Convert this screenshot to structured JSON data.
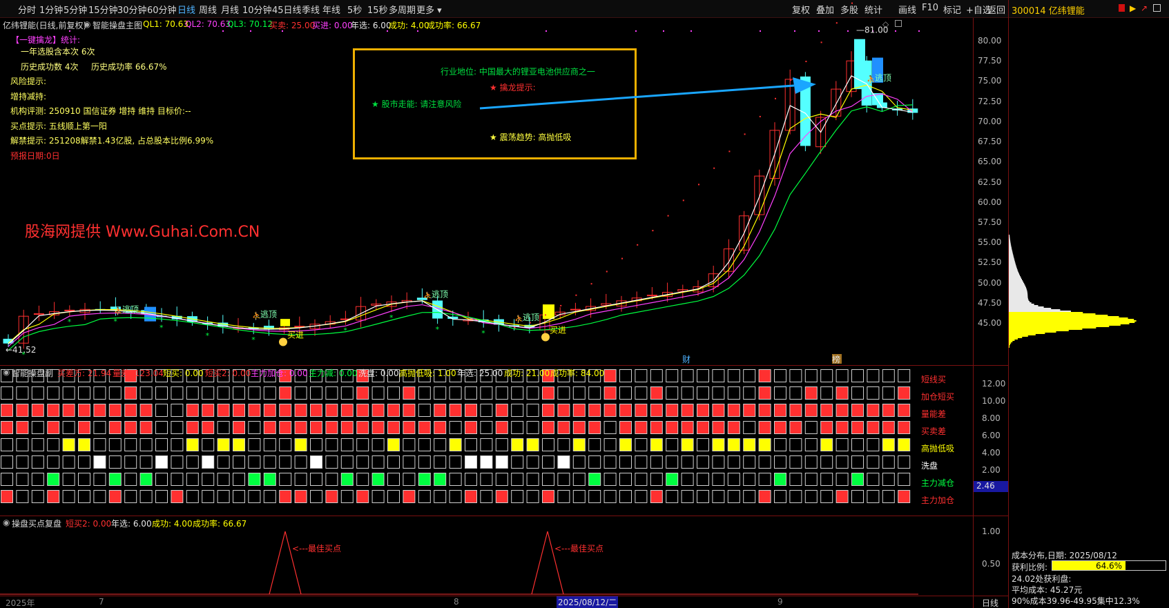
{
  "toolbar": {
    "periods": [
      "分时",
      "1分钟",
      "5分钟",
      "15分钟",
      "30分钟",
      "60分钟",
      "日线",
      "周线",
      "月线",
      "10分钟",
      "45日线",
      "季线",
      "年线",
      "5秒",
      "15秒",
      "多周期",
      "更多"
    ],
    "active_period": "日线",
    "right_buttons": [
      "复权",
      "叠加",
      "多股",
      "统计",
      "画线",
      "F10",
      "标记",
      "+自选",
      "返回"
    ]
  },
  "stock": {
    "code_name": "300014 亿纬锂能"
  },
  "main_header": {
    "stock_label": "亿纬锂能(日线,前复权)",
    "indicator_name": "智能操盘主图",
    "ql1": "QL1: 70.63",
    "ql2": "QL2: 70.63",
    "ql3": "QL3: 70.12",
    "sell": "买卖: 25.00",
    "buy_in": "买进: 0.00",
    "year_sel": "年选: 6.00",
    "success": "成功: 4.00",
    "rate": "成功率: 66.67"
  },
  "stats_panel": {
    "title": "【一键擒龙】统计:",
    "line1": "一年选股含本次 6次",
    "line2a": "历史成功数 4次",
    "line2b": "历史成功率 66.67%",
    "risk": "风险提示:",
    "holding": "增持减持:",
    "rating": "机构评测: 250910 国信证券 增持 维持 目标价:--",
    "buypoint": "买点提示: 五线顺上第一阳",
    "unlock": "解禁提示: 251208解禁1.43亿股, 占总股本比例6.99%",
    "report": "预报日期:0日"
  },
  "watermark": "股海网提供 Www.Guhai.Com.CN",
  "info_box": {
    "industry": "行业地位: 中国最大的锂亚电池供应商之一",
    "dragon": "★ 擒龙提示:",
    "market": "★ 股市走能: 请注意风险",
    "trend": "★ 震荡趋势: 高抛低吸"
  },
  "price_axis": [
    "80.00",
    "77.50",
    "75.00",
    "72.50",
    "70.00",
    "67.50",
    "65.00",
    "62.50",
    "60.00",
    "57.50",
    "55.00",
    "52.50",
    "50.00",
    "47.50",
    "45.00"
  ],
  "high_label": "81.00",
  "low_label": "41.52",
  "chart_marks": {
    "escape": "逃顶",
    "buy": "买进",
    "cai": "财",
    "bang": "榜"
  },
  "sub1_header": {
    "name": "智能操盘副",
    "a": "买差万: 21.94",
    "b": "量差: 123.04",
    "c": "短买: 0.00",
    "d": "短买2: 0.00",
    "e": "主力加仓: 0.00",
    "f": "主力减: 0.00",
    "g": "洗盘: 0.00",
    "h": "高抛低吸: 1.00",
    "i": "年选: 25.00",
    "j": "成功: 21.00",
    "k": "成功率: 84.00"
  },
  "sub1_axis": [
    "12.00",
    "10.00",
    "8.00",
    "6.00",
    "4.00",
    "2.00"
  ],
  "sub1_current": "2.46",
  "sub1_rows": [
    "短线买",
    "加仓短买",
    "量能差",
    "买卖差",
    "高抛低吸",
    "洗盘",
    "主力减仓",
    "主力加仓"
  ],
  "sub2_header": {
    "name": "操盘买点复盘",
    "a": "短买2: 0.00",
    "b": "年选: 6.00",
    "c": "成功: 4.00",
    "d": "成功率: 66.67"
  },
  "sub2_axis": [
    "1.00",
    "0.50"
  ],
  "sub2_label": "最佳买点",
  "bottom_axis": {
    "year": "2025年",
    "m7": "7",
    "m8": "8",
    "m9": "9",
    "cursor": "2025/08/12/二",
    "period": "日线"
  },
  "cost": {
    "title": "成本分布,日期: 2025/08/12",
    "profit_label": "获利比例:",
    "profit_value": "64.6%",
    "profit_fraction": 0.646,
    "line3": "24.02处获利盘:",
    "avg": "平均成本: 45.27元",
    "range": "90%成本39.96-49.95集中12.3%"
  },
  "colors": {
    "up": "#ff3030",
    "down": "#54ffff",
    "yellow": "#ffff00",
    "green": "#00ff40",
    "magenta": "#ff40ff",
    "blue": "#1aa6ff",
    "border": "#7a1010"
  }
}
